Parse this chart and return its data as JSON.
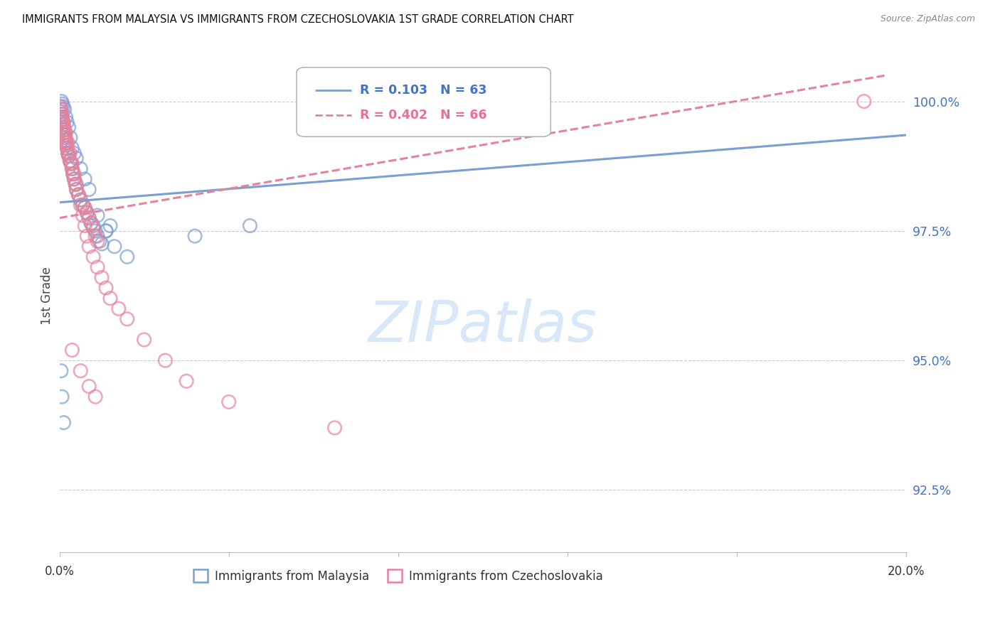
{
  "title": "IMMIGRANTS FROM MALAYSIA VS IMMIGRANTS FROM CZECHOSLOVAKIA 1ST GRADE CORRELATION CHART",
  "source": "Source: ZipAtlas.com",
  "ylabel": "1st Grade",
  "ytick_labels": [
    "92.5%",
    "95.0%",
    "97.5%",
    "100.0%"
  ],
  "ytick_values": [
    92.5,
    95.0,
    97.5,
    100.0
  ],
  "xlim": [
    0.0,
    20.0
  ],
  "ylim": [
    91.3,
    101.2
  ],
  "legend_malaysia": "Immigrants from Malaysia",
  "legend_czechoslovakia": "Immigrants from Czechoslovakia",
  "R_malaysia": 0.103,
  "N_malaysia": 63,
  "R_czechoslovakia": 0.402,
  "N_czechoslovakia": 66,
  "color_malaysia": "#7B9FD4",
  "color_czechoslovakia": "#E8829A",
  "watermark": "ZIPatlas",
  "watermark_color": "#D8E8F8",
  "malaysia_x": [
    0.02,
    0.03,
    0.04,
    0.05,
    0.06,
    0.07,
    0.08,
    0.09,
    0.1,
    0.11,
    0.12,
    0.13,
    0.14,
    0.15,
    0.16,
    0.17,
    0.18,
    0.2,
    0.22,
    0.25,
    0.28,
    0.3,
    0.32,
    0.35,
    0.38,
    0.4,
    0.45,
    0.5,
    0.55,
    0.6,
    0.65,
    0.7,
    0.75,
    0.8,
    0.85,
    0.9,
    0.95,
    1.0,
    1.1,
    1.2,
    0.05,
    0.07,
    0.09,
    0.12,
    0.15,
    0.18,
    0.22,
    0.26,
    0.3,
    0.35,
    0.4,
    0.5,
    0.6,
    0.7,
    0.9,
    1.1,
    1.3,
    1.6,
    3.2,
    4.5,
    0.04,
    0.06,
    0.1
  ],
  "malaysia_y": [
    99.9,
    99.85,
    99.8,
    99.75,
    99.7,
    99.65,
    99.6,
    99.55,
    99.5,
    99.45,
    99.4,
    99.35,
    99.3,
    99.25,
    99.2,
    99.15,
    99.1,
    99.0,
    98.95,
    98.85,
    98.8,
    98.7,
    98.6,
    98.5,
    98.4,
    98.3,
    98.2,
    98.1,
    98.0,
    97.95,
    97.85,
    97.75,
    97.65,
    97.6,
    97.5,
    97.4,
    97.3,
    97.25,
    97.5,
    97.6,
    100.0,
    99.95,
    99.9,
    99.85,
    99.7,
    99.6,
    99.5,
    99.3,
    99.1,
    99.0,
    98.9,
    98.7,
    98.5,
    98.3,
    97.8,
    97.5,
    97.2,
    97.0,
    97.4,
    97.6,
    94.8,
    94.3,
    93.8
  ],
  "czechoslovakia_x": [
    0.02,
    0.03,
    0.04,
    0.05,
    0.06,
    0.07,
    0.08,
    0.09,
    0.1,
    0.11,
    0.12,
    0.13,
    0.14,
    0.15,
    0.16,
    0.17,
    0.18,
    0.2,
    0.22,
    0.25,
    0.28,
    0.3,
    0.32,
    0.35,
    0.38,
    0.4,
    0.45,
    0.5,
    0.55,
    0.6,
    0.65,
    0.7,
    0.75,
    0.8,
    0.85,
    0.9,
    0.1,
    0.15,
    0.2,
    0.25,
    0.3,
    0.35,
    0.4,
    0.45,
    0.5,
    0.55,
    0.6,
    0.65,
    0.7,
    0.8,
    0.9,
    1.0,
    1.1,
    1.2,
    1.4,
    1.6,
    2.0,
    2.5,
    3.0,
    4.0,
    6.5,
    0.3,
    0.5,
    0.7,
    0.85,
    19.0
  ],
  "czechoslovakia_y": [
    99.9,
    99.85,
    99.8,
    99.75,
    99.7,
    99.65,
    99.6,
    99.55,
    99.5,
    99.45,
    99.4,
    99.35,
    99.3,
    99.25,
    99.2,
    99.15,
    99.1,
    99.0,
    98.95,
    98.85,
    98.8,
    98.7,
    98.6,
    98.5,
    98.4,
    98.3,
    98.2,
    98.1,
    98.0,
    97.95,
    97.85,
    97.75,
    97.65,
    97.55,
    97.4,
    97.3,
    99.6,
    99.4,
    99.2,
    99.0,
    98.8,
    98.6,
    98.4,
    98.2,
    98.0,
    97.8,
    97.6,
    97.4,
    97.2,
    97.0,
    96.8,
    96.6,
    96.4,
    96.2,
    96.0,
    95.8,
    95.4,
    95.0,
    94.6,
    94.2,
    93.7,
    95.2,
    94.8,
    94.5,
    94.3,
    100.0
  ],
  "trend_x_start_malaysia": 0.0,
  "trend_x_end_malaysia": 20.0,
  "trend_x_start_czechoslovakia": 0.0,
  "trend_x_end_czechoslovakia": 19.5
}
